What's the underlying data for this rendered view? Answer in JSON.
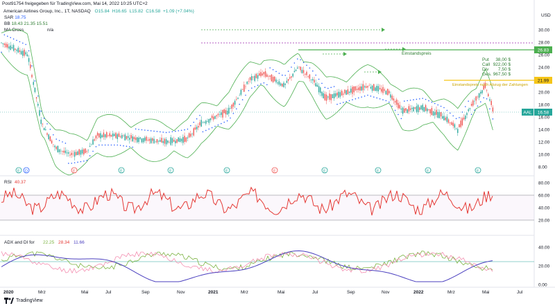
{
  "header": {
    "publisher": "Post91754 freigegeben für TradingView.com, Mai 14, 2022 10:25 UTC+2"
  },
  "symbol": {
    "name": "American Airlines Group, Inc., 1T, NASDAQ",
    "o_label": "O",
    "o": "15.84",
    "h_label": "H",
    "h": "16.65",
    "l_label": "L",
    "l": "15.82",
    "c_label": "C",
    "c": "16.58",
    "change": "+1.09 (+7.04%)"
  },
  "indicators": {
    "sar_label": "SAR",
    "sar_value": "18.75",
    "bb_label": "BB",
    "bb_values": "18.43  21.35  15.51",
    "ma_cross_label": "MA Cross",
    "ma_cross_value": "n/a",
    "rsi_label": "RSI",
    "rsi_value": "40.37",
    "adx_label": "ADX and DI for",
    "adx_v1": "22.25",
    "adx_v2": "28.34",
    "adx_v3": "11.66"
  },
  "currency": "USD",
  "price_axis": [
    "30.00",
    "28.00",
    "26.00",
    "24.00",
    "22.00",
    "20.00",
    "18.00",
    "16.00",
    "14.00",
    "12.00",
    "10.00",
    "8.00"
  ],
  "price_tags": {
    "einstand": "26.83",
    "put_level": "21.99",
    "aal_symbol": "AAL",
    "aal_price": "16.58"
  },
  "annotations": {
    "einstandspreis": "Einstandspreis",
    "put": "Put",
    "put_val": "38,00 $",
    "call": "Call",
    "call_val": "922,00 $",
    "div": "Div",
    "div_val": "7,50 $",
    "ges": "Ges.",
    "ges_val": "967,50 $",
    "einstand_abzug": "Einstandspreis nach Abzug der Zahlungen"
  },
  "rsi_axis": [
    "80.00",
    "60.00",
    "40.00",
    "20.00"
  ],
  "adx_axis": [
    "40.00",
    "20.00",
    "0.00"
  ],
  "time_axis": [
    "2020",
    "Mrz",
    "Mai",
    "Jul",
    "Sep",
    "Nov",
    "2021",
    "Mrz",
    "Mai",
    "Jul",
    "Sep",
    "Nov",
    "2022",
    "Mrz",
    "Mai",
    "Jul"
  ],
  "event_markers": [
    "E",
    "D",
    "E",
    "E",
    "E",
    "E",
    "E",
    "E",
    "E",
    "E",
    "E",
    "E"
  ],
  "footer": {
    "brand": "TradingView"
  },
  "colors": {
    "bb_band": "#4caf50",
    "sar": "#2962ff",
    "rsi": "#e53935",
    "adx": "#4a3fbf",
    "di_plus": "#7cb342",
    "di_minus": "#f48fb1",
    "einstand_line": "#4caf50",
    "put_line": "#f5c518"
  }
}
